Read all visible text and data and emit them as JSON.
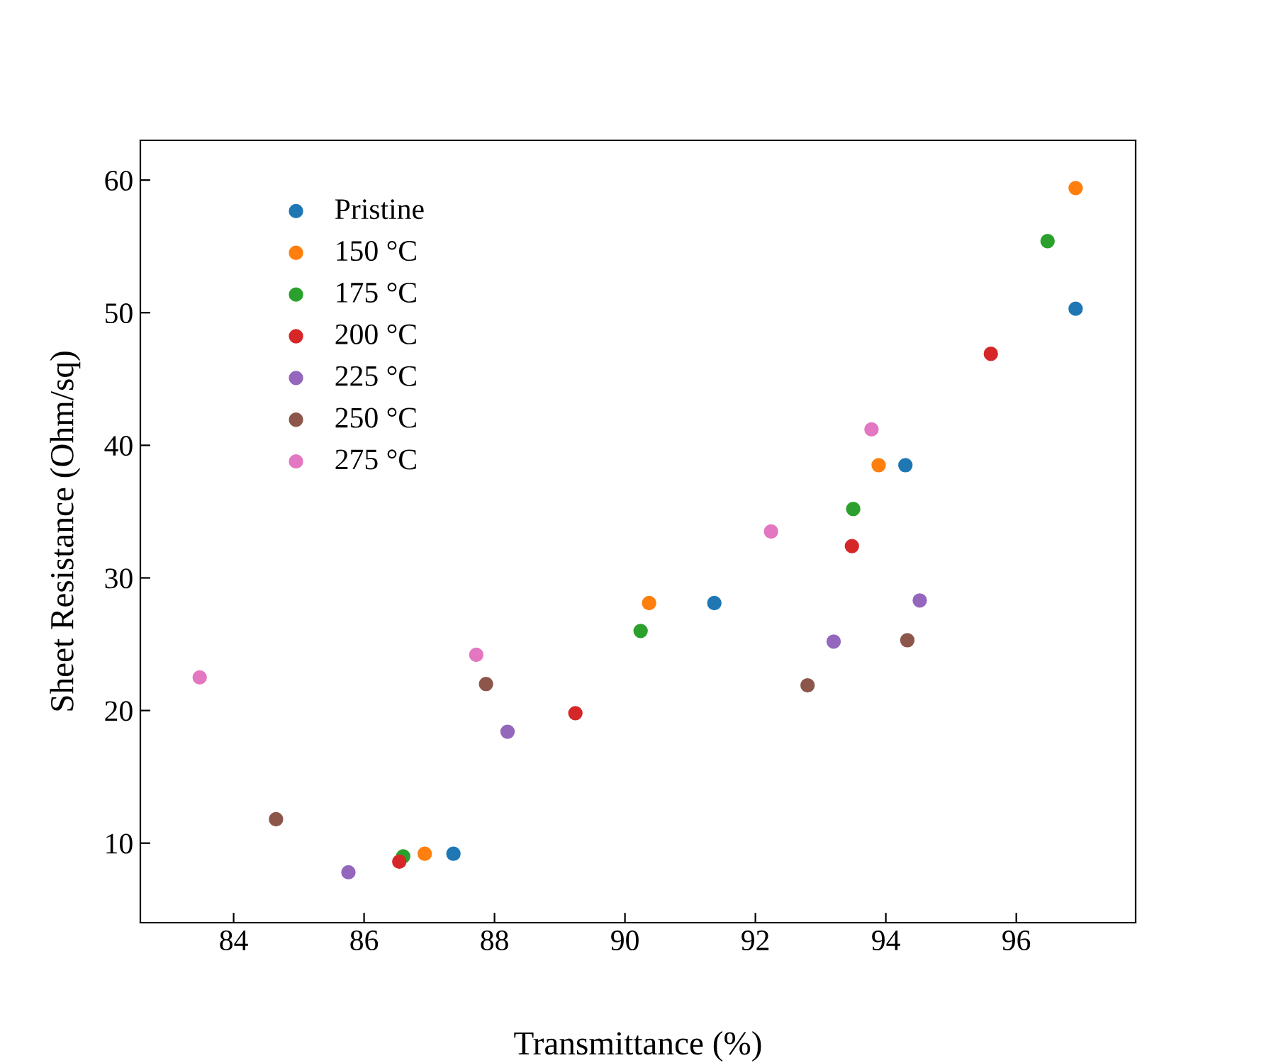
{
  "chart_data": {
    "type": "scatter",
    "xlabel": "Transmittance (%)",
    "ylabel": "Sheet Resistance (Ohm/sq)",
    "xlim": [
      82.57,
      97.83
    ],
    "ylim": [
      4,
      63
    ],
    "xticks": [
      84,
      86,
      88,
      90,
      92,
      94,
      96
    ],
    "yticks": [
      10,
      20,
      30,
      40,
      50,
      60
    ],
    "grid": false,
    "legend": "top left",
    "marker": "circle",
    "series": [
      {
        "name": "Pristine",
        "color": "#1f77b4",
        "x": [
          87.37,
          91.37,
          94.3,
          96.91
        ],
        "values": [
          9.2,
          28.1,
          38.5,
          50.3
        ]
      },
      {
        "name": "150 °C",
        "color": "#ff7f0e",
        "x": [
          86.93,
          90.37,
          93.89,
          96.91
        ],
        "values": [
          9.2,
          28.1,
          38.5,
          59.4
        ]
      },
      {
        "name": "175 °C",
        "color": "#2ca02c",
        "x": [
          86.6,
          90.24,
          93.5,
          96.48
        ],
        "values": [
          9.0,
          26.0,
          35.2,
          55.4
        ]
      },
      {
        "name": "200 °C",
        "color": "#d62728",
        "x": [
          86.54,
          89.24,
          93.48,
          95.61
        ],
        "values": [
          8.6,
          19.8,
          32.4,
          46.9
        ]
      },
      {
        "name": "225 °C",
        "color": "#9467bd",
        "x": [
          85.76,
          88.2,
          93.2,
          94.52
        ],
        "values": [
          7.8,
          18.4,
          25.2,
          28.3
        ]
      },
      {
        "name": "250 °C",
        "color": "#8c564b",
        "x": [
          84.65,
          87.87,
          92.8,
          94.33
        ],
        "values": [
          11.8,
          22.0,
          21.9,
          25.3
        ]
      },
      {
        "name": "275 °C",
        "color": "#e377c2",
        "x": [
          83.48,
          87.72,
          92.24,
          93.78
        ],
        "values": [
          22.5,
          24.2,
          33.5,
          41.2
        ]
      }
    ]
  }
}
